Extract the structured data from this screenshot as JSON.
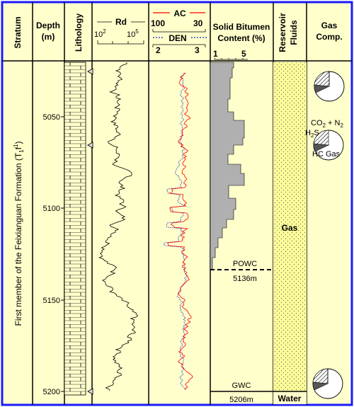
{
  "headers": {
    "stratum": "Stratum",
    "depth_line1": "Depth",
    "depth_line2": "(m)",
    "lithology": "Lithology",
    "rd": "Rd",
    "ac": "AC",
    "den": "DEN",
    "bitumen_line1": "Solid Bitumen",
    "bitumen_line2": "Content (%)",
    "fluids_line1": "Reservoir",
    "fluids_line2": "Fluids",
    "gas_line1": "Gas",
    "gas_line2": "Comp."
  },
  "scales": {
    "rd_min": "10",
    "rd_min_exp": "2",
    "rd_max": "10",
    "rd_max_exp": "5",
    "ac_min": "100",
    "ac_max": "30",
    "den_min": "2",
    "den_max": "3",
    "bit_min": "1",
    "bit_max": "5"
  },
  "depth_ticks": [
    "5050",
    "5100",
    "5150",
    "5200"
  ],
  "stratum_label": "First member of the Feixianguan Formation (T",
  "stratum_sub": "1",
  "stratum_f": "f",
  "stratum_sup": "1",
  "stratum_close": ")",
  "fluids": {
    "gas_label": "Gas",
    "water_label": "Water",
    "powc_label": "POWC",
    "powc_depth": "5136m",
    "gwc_label": "GWC",
    "gwc_depth": "5206m"
  },
  "gas_comp": {
    "co2_n2_prefix": "CO",
    "co2_n2_sub": "2",
    "co2_n2_suffix": " + N",
    "co2_n2_sub2": "2",
    "h2s_prefix": "H",
    "h2s_sub": "2",
    "h2s_suffix": "S",
    "hc_gas": "HC Gas"
  },
  "colors": {
    "border": "#1a1aff",
    "panel_bg": "#ffffcc",
    "ac_curve": "#ff0000",
    "den_curve": "#3344cc",
    "bitumen_fill": "#b0b0b0",
    "reservoir_fill": "#ffff99"
  },
  "lithology_symbols": [
    "limestone-brick-pattern"
  ],
  "markers": [
    "triangle-marker"
  ]
}
